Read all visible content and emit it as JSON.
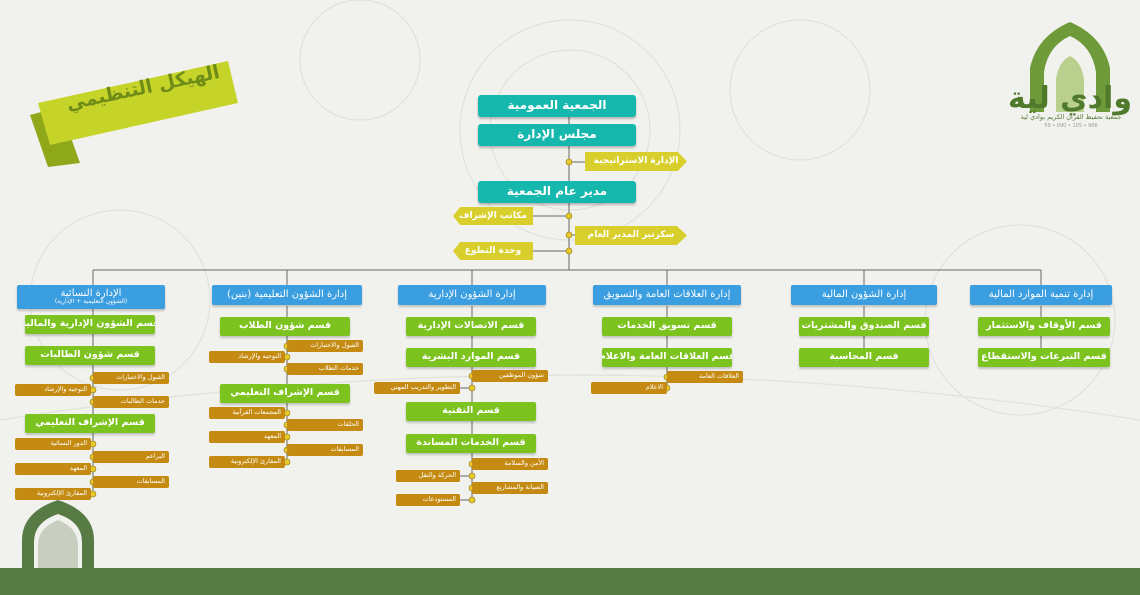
{
  "title": "الهيكل التنظيمي",
  "org": {
    "name": "جمعية تحفيظ القرآن الكريم بوادي لية",
    "logo_text": "وادي لية",
    "contact": "966 • 105 • 090 • 59"
  },
  "top": {
    "general_assembly": "الجمعية العمومية",
    "board": "مجلس الإدارة",
    "strategy": "الإدارة الاستراتيجية",
    "director": "مدير عام الجمعية",
    "supervision_offices": "مكاتب الإشراف",
    "gm_secretary": "سكرتير المدير العام",
    "volunteer_unit": "وحدة التطوع"
  },
  "depts": {
    "women": {
      "name": "الإدارة النسائية",
      "sub": "(الشؤون التعليمية + الإدارية)",
      "s1": "قسم الشؤون الإدارية والمالية",
      "s2": "قسم شؤون الطالبات",
      "s2a": "القبول والاختبارات",
      "s2b": "التوجيه والإرشاد",
      "s2c": "خدمات الطالبات",
      "s3": "قسم الإشراف التعليمي",
      "s3a": "الدور النسائية",
      "s3b": "البراعم",
      "s3c": "المعهد",
      "s3d": "المسابقات",
      "s3e": "المقارئ الإلكترونية"
    },
    "education": {
      "name": "إدارة الشؤون التعليمية (بنين)",
      "s1": "قسم شؤون الطلاب",
      "s1a": "القبول والاختبارات",
      "s1b": "التوجيه والإرشاد",
      "s1c": "خدمات الطلاب",
      "s2": "قسم الإشراف التعليمي",
      "s2a": "المجمعات القرآنية",
      "s2b": "الحلقات",
      "s2c": "المعهد",
      "s2d": "المسابقات",
      "s2e": "المقارئ الإلكترونية"
    },
    "admin": {
      "name": "إدارة الشؤون الإدارية",
      "s1": "قسم الاتصالات الإدارية",
      "s2": "قسم الموارد البشرية",
      "s2a": "شؤون الموظفين",
      "s2b": "التطوير والتدريب المهني",
      "s3": "قسم التقنية",
      "s4": "قسم الخدمات المساندة",
      "s4a": "الأمن والسلامة",
      "s4b": "الحركة والنقل",
      "s4c": "الصيانة والمشاريع",
      "s4d": "المستودعات"
    },
    "pr": {
      "name": "إدارة العلاقات العامة والتسويق",
      "s1": "قسم تسويق الخدمات",
      "s2": "قسم العلاقات العامة والاعلام",
      "s2a": "العلاقات العامة",
      "s2b": "الاعلام"
    },
    "finance": {
      "name": "إدارة الشؤون المالية",
      "s1": "قسم الصندوق والمشتريات",
      "s2": "قسم المحاسبة"
    },
    "resources": {
      "name": "إدارة تنمية الموارد المالية",
      "s1": "قسم الأوقاف والاستثمار",
      "s2": "قسم التبرعات والاستقطاع"
    }
  },
  "colors": {
    "top_boxes": "#16b7ad",
    "departments": "#3a9ee0",
    "sections": "#7dc31f",
    "units": "#c48a12",
    "staff_tags": "#d9cf2c",
    "footer": "#587a45"
  }
}
